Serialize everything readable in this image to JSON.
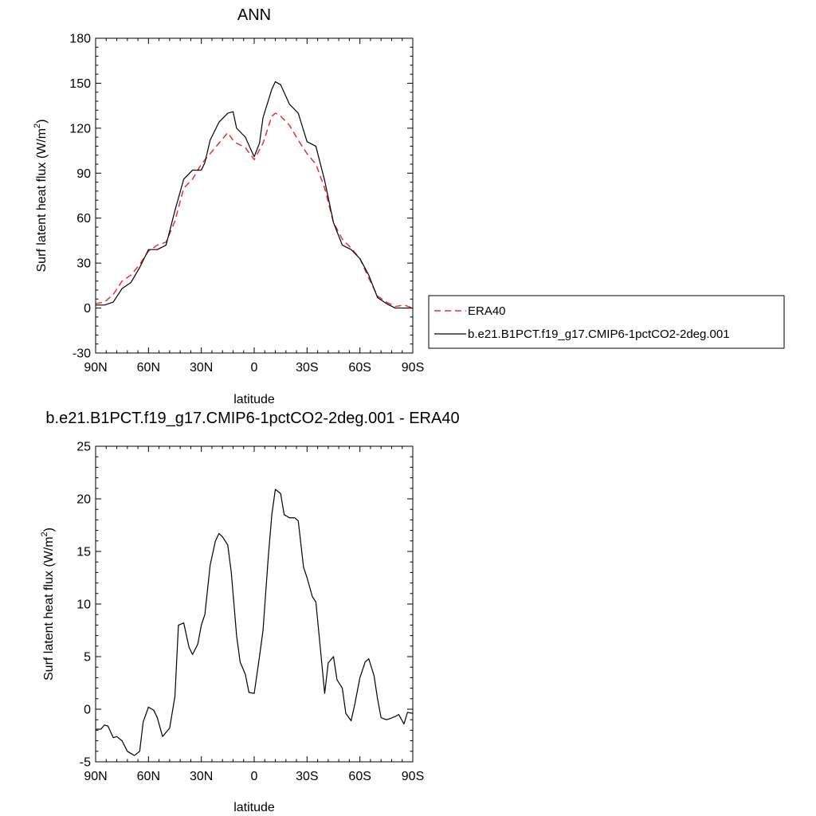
{
  "chart_data": [
    {
      "type": "line",
      "title": "ANN",
      "xlabel": "latitude",
      "ylabel": "Surf latent heat flux (W/m²)",
      "ylabel_main": "Surf latent heat flux (W/m",
      "ylabel_sup": "2",
      "ylabel_end": ")",
      "xlim": [
        90,
        -90
      ],
      "ylim": [
        -30,
        180
      ],
      "yticks": [
        -30,
        0,
        30,
        60,
        90,
        120,
        150,
        180
      ],
      "ytick_labels": [
        "-30",
        "0",
        "30",
        "60",
        "90",
        "120",
        "150",
        "180"
      ],
      "xticks": [
        90,
        60,
        30,
        0,
        -30,
        -60,
        -90
      ],
      "xtick_labels": [
        "90N",
        "60N",
        "30N",
        "0",
        "30S",
        "60S",
        "90S"
      ],
      "grid": false,
      "legend_position": "right",
      "series": [
        {
          "name": "ERA40",
          "color": "#e8312d",
          "dash": "dashed",
          "x": [
            90,
            85,
            80,
            75,
            70,
            65,
            60,
            55,
            50,
            45,
            40,
            35,
            30,
            25,
            20,
            15,
            12,
            10,
            5,
            0,
            -5,
            -10,
            -12,
            -15,
            -20,
            -25,
            -30,
            -35,
            -40,
            -45,
            -50,
            -55,
            -60,
            -65,
            -70,
            -75,
            -80,
            -85,
            -90
          ],
          "y": [
            3,
            4,
            9,
            18,
            22,
            29,
            38,
            42,
            44,
            58,
            80,
            86,
            96,
            103,
            110,
            117,
            112,
            110,
            107,
            99,
            110,
            128,
            130,
            128,
            122,
            112,
            103,
            96,
            80,
            57,
            46,
            40,
            33,
            20,
            8,
            4,
            1,
            2,
            0
          ]
        },
        {
          "name": "b.e21.B1PCT.f19_g17.CMIP6-1pctCO2-2deg.001",
          "color": "#000000",
          "dash": "solid",
          "x": [
            90,
            85,
            80,
            75,
            70,
            65,
            60,
            55,
            50,
            45,
            40,
            35,
            30,
            28,
            25,
            20,
            15,
            12,
            10,
            5,
            2,
            0,
            -3,
            -5,
            -10,
            -12,
            -15,
            -20,
            -25,
            -30,
            -35,
            -40,
            -45,
            -50,
            -55,
            -60,
            -65,
            -70,
            -75,
            -80,
            -85,
            -90
          ],
          "y": [
            2,
            2,
            4,
            13,
            17,
            27,
            39,
            39,
            42,
            65,
            86,
            92,
            92,
            97,
            112,
            124,
            130,
            131,
            120,
            114,
            106,
            101,
            110,
            127,
            146,
            151,
            149,
            136,
            130,
            111,
            108,
            85,
            57,
            42,
            39,
            33,
            22,
            7,
            3,
            0,
            0,
            0
          ]
        }
      ]
    },
    {
      "type": "line",
      "title": "b.e21.B1PCT.f19_g17.CMIP6-1pctCO2-2deg.001 - ERA40",
      "xlabel": "latitude",
      "ylabel": "Surf latent heat flux (W/m²)",
      "ylabel_main": "Surf latent heat flux (W/m",
      "ylabel_sup": "2",
      "ylabel_end": ")",
      "xlim": [
        90,
        -90
      ],
      "ylim": [
        -5,
        25
      ],
      "yticks": [
        -5,
        0,
        5,
        10,
        15,
        20,
        25
      ],
      "ytick_labels": [
        "-5",
        "0",
        "5",
        "10",
        "15",
        "20",
        "25"
      ],
      "xticks": [
        90,
        60,
        30,
        0,
        -30,
        -60,
        -90
      ],
      "xtick_labels": [
        "90N",
        "60N",
        "30N",
        "0",
        "30S",
        "60S",
        "90S"
      ],
      "grid": false,
      "series": [
        {
          "color": "#000000",
          "dash": "solid",
          "x": [
            90,
            87,
            85,
            83,
            80,
            78,
            75,
            72,
            70,
            68,
            65,
            63,
            60,
            57,
            55,
            52,
            50,
            48,
            45,
            43,
            40,
            37,
            35,
            32,
            30,
            28,
            25,
            22,
            20,
            18,
            15,
            13,
            10,
            8,
            5,
            3,
            0,
            -3,
            -5,
            -8,
            -10,
            -12,
            -15,
            -17,
            -20,
            -23,
            -25,
            -28,
            -30,
            -33,
            -35,
            -38,
            -40,
            -42,
            -45,
            -47,
            -50,
            -52,
            -55,
            -57,
            -60,
            -63,
            -65,
            -68,
            -70,
            -72,
            -75,
            -77,
            -80,
            -82,
            -85,
            -87,
            -90
          ],
          "y": [
            -1.9,
            -1.9,
            -1.5,
            -1.6,
            -2.7,
            -2.6,
            -3.0,
            -4.0,
            -4.2,
            -4.4,
            -4.0,
            -1.2,
            0.2,
            -0.1,
            -0.8,
            -2.6,
            -2.2,
            -1.8,
            1.2,
            8.0,
            8.2,
            5.9,
            5.2,
            6.2,
            8.0,
            9.0,
            13.7,
            16.0,
            16.7,
            16.4,
            15.6,
            13.0,
            7.0,
            4.5,
            3.3,
            1.6,
            1.5,
            5.0,
            7.5,
            14.5,
            18.5,
            20.9,
            20.5,
            18.5,
            18.2,
            18.2,
            17.9,
            13.5,
            12.5,
            10.7,
            10.2,
            5.0,
            1.5,
            4.4,
            5.0,
            2.8,
            2.0,
            -0.4,
            -1.1,
            0.4,
            3.0,
            4.5,
            4.8,
            3.2,
            1.0,
            -0.8,
            -1.0,
            -0.9,
            -0.7,
            -0.5,
            -1.4,
            -0.3,
            -0.4
          ]
        }
      ]
    }
  ]
}
